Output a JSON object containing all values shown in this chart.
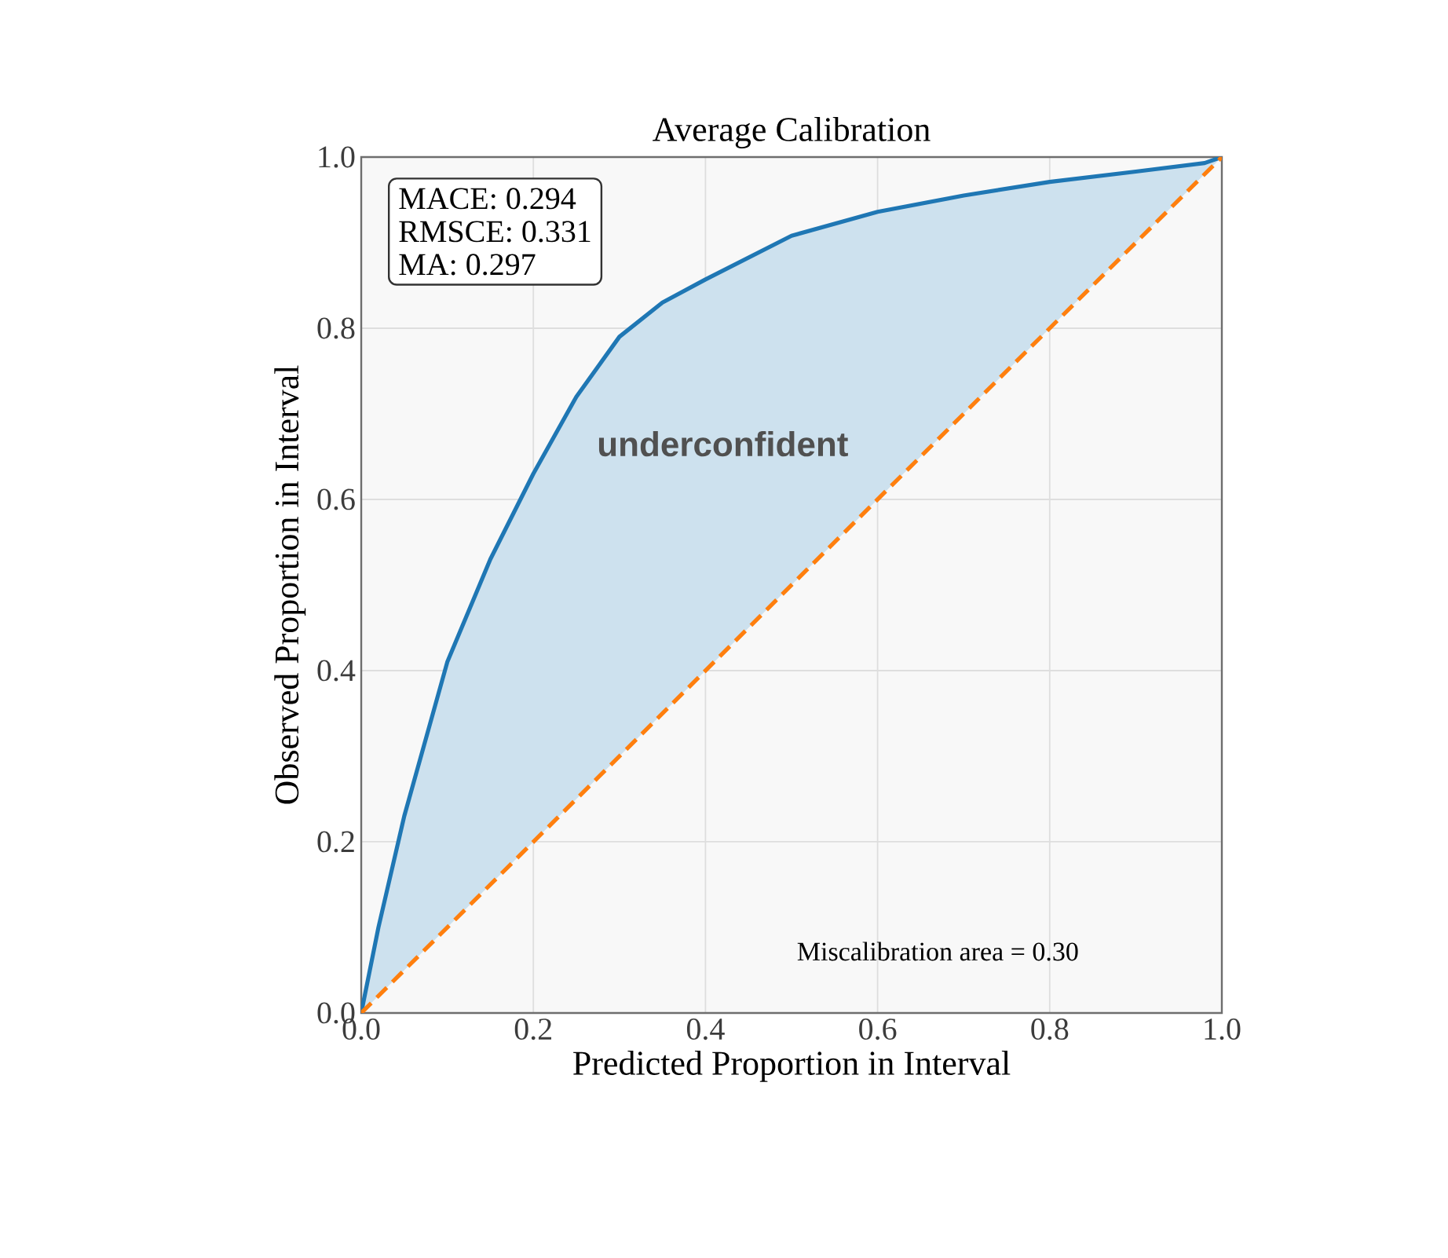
{
  "chart_data": {
    "type": "line",
    "title": "Average Calibration",
    "xlabel": "Predicted Proportion in Interval",
    "ylabel": "Observed Proportion in Interval",
    "x": [
      0,
      0.02,
      0.05,
      0.1,
      0.15,
      0.2,
      0.25,
      0.3,
      0.35,
      0.4,
      0.5,
      0.6,
      0.7,
      0.8,
      0.9,
      0.98,
      1
    ],
    "series": [
      {
        "color": "#1f77b4",
        "values": [
          0,
          0.1,
          0.23,
          0.41,
          0.53,
          0.63,
          0.72,
          0.79,
          0.83,
          0.857,
          0.908,
          0.936,
          0.955,
          0.971,
          0.983,
          0.993,
          1
        ],
        "line_style": "solid"
      },
      {
        "color": "#ff7f0e",
        "x": [
          0,
          1
        ],
        "values": [
          0,
          1
        ],
        "line_style": "dashed"
      }
    ],
    "xlim": [
      0,
      1
    ],
    "ylim": [
      0,
      1
    ],
    "xticks": [
      {
        "value": 0,
        "label": "0.0"
      },
      {
        "value": 0.2,
        "label": "0.2"
      },
      {
        "value": 0.4,
        "label": "0.4"
      },
      {
        "value": 0.6,
        "label": "0.6"
      },
      {
        "value": 0.8,
        "label": "0.8"
      },
      {
        "value": 1,
        "label": "1.0"
      }
    ],
    "yticks": [
      {
        "value": 0,
        "label": "0.0"
      },
      {
        "value": 0.2,
        "label": "0.2"
      },
      {
        "value": 0.4,
        "label": "0.4"
      },
      {
        "value": 0.6,
        "label": "0.6"
      },
      {
        "value": 0.8,
        "label": "0.8"
      },
      {
        "value": 1,
        "label": "1.0"
      }
    ],
    "grid": true,
    "marker": "none",
    "annotations": [
      "MACE: 0.294",
      "RMSCE: 0.331",
      "MA: 0.297",
      "underconfident",
      "Miscalibration area = 0.30"
    ]
  }
}
